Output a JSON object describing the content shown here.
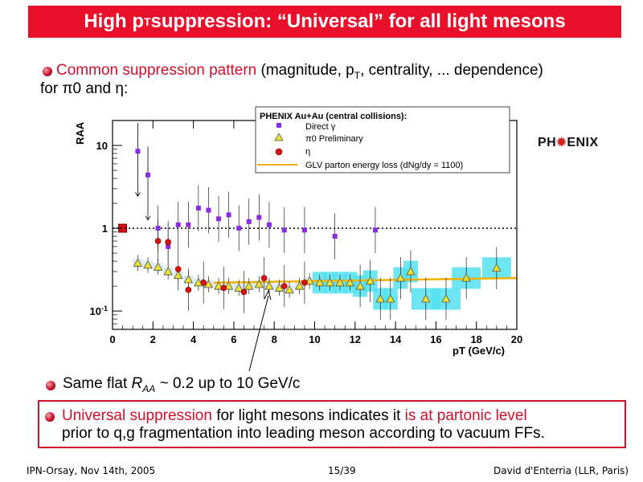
{
  "slide": {
    "title_main": "High p",
    "title_sub": "T",
    "title_rest": " suppression: “Universal” for all light mesons",
    "bullet1_red": "Common suppression pattern",
    "bullet1_rest": " (magnitude, p",
    "bullet1_sub": "T",
    "bullet1_rest2": ", centrality, ... dependence)",
    "bullet1_line2": "for π0 and η:",
    "bullet2_pre": "Same flat ",
    "bullet2_raa": "R",
    "bullet2_raa_sub": "AA",
    "bullet2_post": " ~ 0.2 up to 10 GeV/c",
    "bullet3_red1": "Universal suppression",
    "bullet3_mid": " for light mesons indicates it ",
    "bullet3_red2": "is at partonic level",
    "bullet3_line2": "prior to q,g fragmentation into leading meson according to vacuum FFs.",
    "logo_left": "PH",
    "logo_right": "ENIX",
    "footer_left": "IPN-Orsay, Nov 14th, 2005",
    "footer_center": "15/39",
    "footer_right": "David d'Enterria (LLR, Paris)"
  },
  "chart_data": {
    "type": "scatter",
    "title": "PHENIX Au+Au (central collisions):",
    "xlabel": "pT (GeV/c)",
    "ylabel": "RAA",
    "xlim": [
      0,
      20
    ],
    "ylim": [
      0.06,
      20
    ],
    "yscale": "log",
    "x_ticks": [
      "0",
      "2",
      "4",
      "6",
      "8",
      "10",
      "12",
      "14",
      "16",
      "18",
      "20"
    ],
    "y_ticks": [
      "10",
      "1",
      "10-1"
    ],
    "reference_line": 1,
    "series": [
      {
        "name": "Direct γ",
        "marker": "square",
        "color": "#8a2be2",
        "x": [
          1.25,
          1.75,
          2.25,
          2.75,
          3.25,
          3.75,
          4.25,
          4.75,
          5.25,
          5.75,
          6.25,
          6.75,
          7.25,
          7.75,
          8.5,
          9.5,
          11.0,
          13.0
        ],
        "y": [
          8.5,
          4.4,
          1.0,
          0.6,
          1.1,
          1.1,
          1.75,
          1.65,
          1.3,
          1.45,
          1.0,
          1.2,
          1.35,
          1.1,
          0.95,
          0.95,
          0.8,
          0.95
        ]
      },
      {
        "name": "π0 Preliminary",
        "marker": "triangle",
        "color": "#f0e030",
        "x": [
          1.25,
          1.75,
          2.25,
          2.75,
          3.25,
          3.75,
          4.25,
          4.75,
          5.25,
          5.75,
          6.25,
          6.75,
          7.25,
          7.75,
          8.25,
          8.75,
          9.25,
          9.75,
          10.25,
          10.75,
          11.25,
          11.75,
          12.25,
          12.75,
          13.25,
          13.75,
          14.25,
          14.75,
          15.5,
          16.5,
          17.5,
          19.0
        ],
        "y": [
          0.38,
          0.36,
          0.34,
          0.3,
          0.27,
          0.24,
          0.22,
          0.21,
          0.2,
          0.2,
          0.19,
          0.2,
          0.21,
          0.2,
          0.19,
          0.18,
          0.2,
          0.23,
          0.22,
          0.22,
          0.22,
          0.22,
          0.2,
          0.23,
          0.14,
          0.14,
          0.25,
          0.3,
          0.14,
          0.14,
          0.25,
          0.33
        ]
      },
      {
        "name": "η",
        "marker": "circle",
        "color": "#e01010",
        "x": [
          2.25,
          2.75,
          3.25,
          3.75,
          4.5,
          5.5,
          6.5,
          7.5,
          8.5,
          9.5
        ],
        "y": [
          0.7,
          0.68,
          0.32,
          0.18,
          0.22,
          0.19,
          0.17,
          0.25,
          0.2,
          0.22
        ]
      }
    ],
    "theory": {
      "name": "GLV parton energy loss (dNg/dy = 1100)",
      "color": "#f0b000",
      "x": [
        5,
        20
      ],
      "y": [
        0.22,
        0.25
      ]
    },
    "normalization_box": {
      "x": 0.5,
      "y": 1
    }
  }
}
